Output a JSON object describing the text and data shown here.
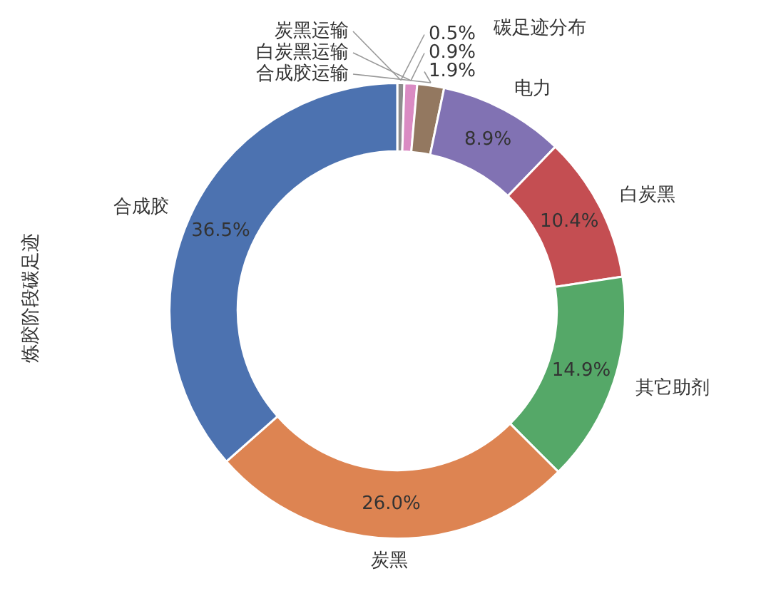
{
  "chart_data": {
    "type": "donut",
    "title": "碳足迹分布",
    "ylabel": "炼胶阶段碳足迹",
    "categories": [
      "炭黑运输",
      "白炭黑运输",
      "合成胶运输",
      "电力",
      "白炭黑",
      "其它助剂",
      "炭黑",
      "合成胶"
    ],
    "values": [
      0.5,
      0.9,
      1.9,
      8.9,
      10.4,
      14.9,
      26.0,
      36.5
    ],
    "value_labels": [
      "0.5%",
      "0.9%",
      "1.9%",
      "8.9%",
      "10.4%",
      "14.9%",
      "26.0%",
      "36.5%"
    ],
    "colors": [
      "#8c8c8c",
      "#da8bc3",
      "#937860",
      "#8172b3",
      "#c44e52",
      "#55a868",
      "#dd8452",
      "#4c72b0"
    ],
    "legend": false
  }
}
